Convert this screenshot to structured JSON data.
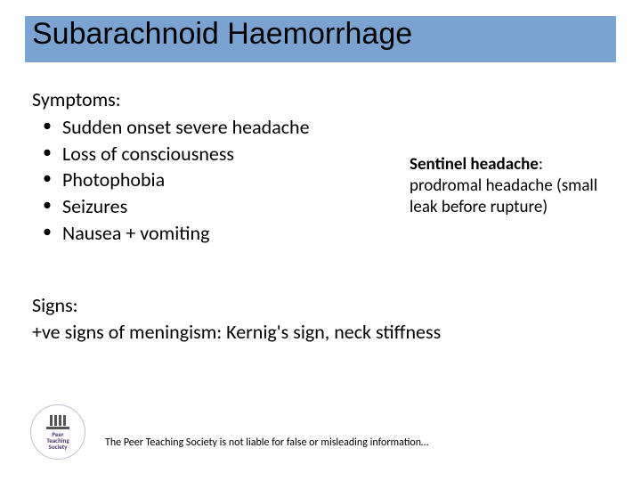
{
  "title": "Subarachnoid Haemorrhage",
  "symptoms": {
    "label": "Symptoms:",
    "items": [
      "Sudden onset severe headache",
      "Loss of consciousness",
      "Photophobia",
      "Seizures",
      "Nausea + vomiting"
    ]
  },
  "sidebar": {
    "heading": "Sentinel headache",
    "colon": ": ",
    "body": "prodromal headache (small leak before rupture)"
  },
  "signs": {
    "label": "Signs:",
    "body": "+ve signs of meningism: Kernig's sign, neck stiffness"
  },
  "logo": {
    "line1": "Peer",
    "line2": "Teaching",
    "line3": "Society"
  },
  "footer": "The Peer Teaching Society is not liable for false or misleading information…",
  "colors": {
    "title_bar_bg": "#7ba3d1",
    "text": "#000000",
    "logo_border": "#c9b8d8",
    "logo_text": "#4a356a"
  },
  "fonts": {
    "title_size": 34,
    "body_size": 22,
    "sidebar_size": 19,
    "footer_size": 12
  }
}
